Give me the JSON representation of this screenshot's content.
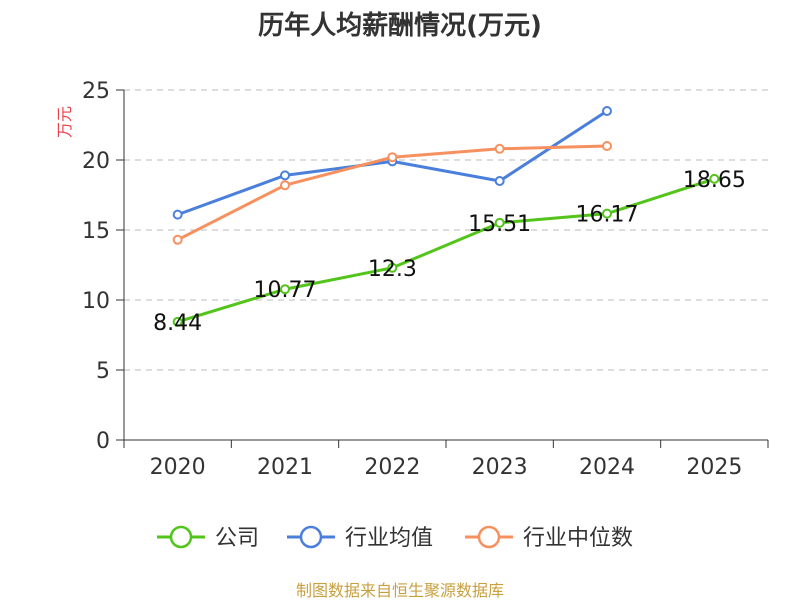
{
  "chart_data": {
    "type": "line",
    "title": "历年人均薪酬情况(万元)",
    "ylabel": "万元",
    "xlabel": "",
    "categories": [
      "2020",
      "2021",
      "2022",
      "2023",
      "2024",
      "2025"
    ],
    "ylim": [
      0,
      25
    ],
    "yticks": [
      0,
      5,
      10,
      15,
      20,
      25
    ],
    "grid": true,
    "legend_position": "bottom",
    "series": [
      {
        "name": "公司",
        "color": "#52c41a",
        "values": [
          8.44,
          10.77,
          12.3,
          15.51,
          16.17,
          18.65
        ],
        "labels": [
          "8.44",
          "10.77",
          "12.3",
          "15.51",
          "16.17",
          "18.65"
        ]
      },
      {
        "name": "行业均值",
        "color": "#4a7fdc",
        "values": [
          16.1,
          18.9,
          19.9,
          18.5,
          23.5,
          null
        ]
      },
      {
        "name": "行业中位数",
        "color": "#f7905f",
        "values": [
          14.3,
          18.2,
          20.2,
          20.8,
          21.0,
          null
        ]
      }
    ]
  },
  "source_text": "制图数据来自恒生聚源数据库",
  "colors": {
    "title": "#333333",
    "ylabel": "#e8424a",
    "source": "#c8a040",
    "grid": "#bbbbbb",
    "axis": "#333333"
  }
}
